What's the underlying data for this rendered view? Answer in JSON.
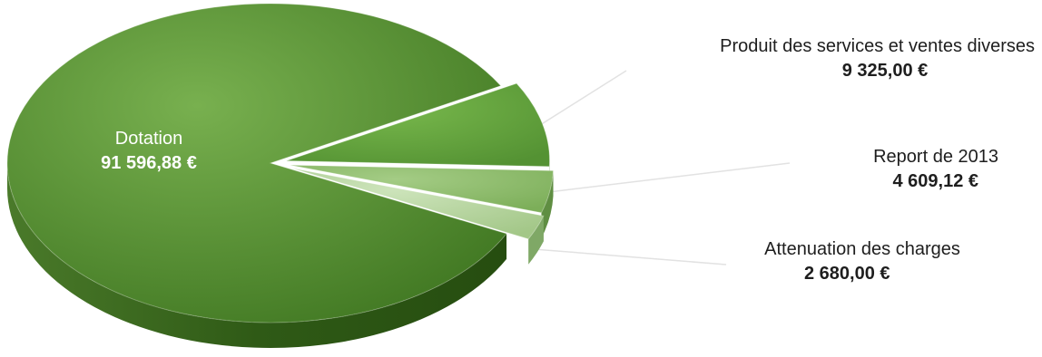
{
  "chart_data": {
    "type": "pie",
    "style": "3d-exploded",
    "slices": [
      {
        "label": "Dotation",
        "value": 91596.88,
        "value_label": "91 596,88 €",
        "color": "#4f8a2e"
      },
      {
        "label": "Produit des services et ventes diverses",
        "value": 9325.0,
        "value_label": "9 325,00 €",
        "color": "#5f9e37"
      },
      {
        "label": "Report de 2013",
        "value": 4609.12,
        "value_label": "4 609,12 €",
        "color": "#8cbb6a"
      },
      {
        "label": "Attenuation des charges",
        "value": 2680.0,
        "value_label": "2 680,00 €",
        "color": "#b4d49c"
      }
    ],
    "legend": false
  }
}
